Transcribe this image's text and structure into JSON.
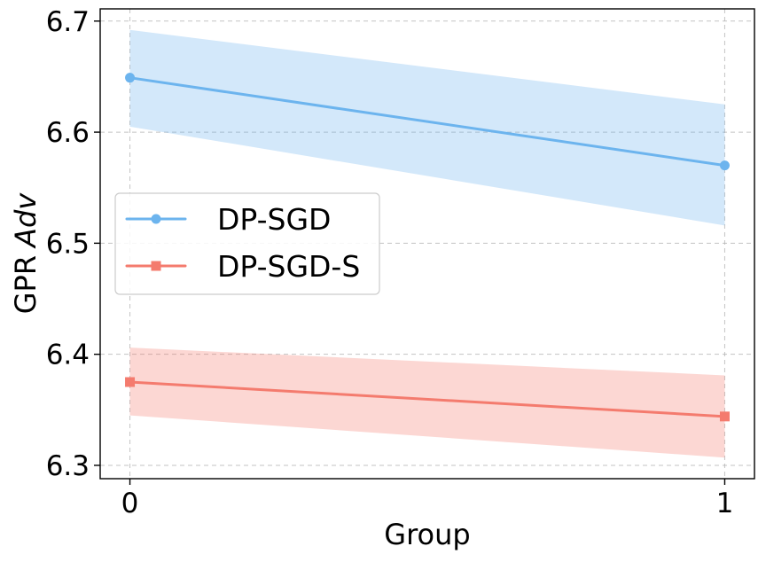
{
  "chart_data": {
    "type": "line",
    "title": "",
    "xlabel": "Group",
    "ylabel": "GPR",
    "ylabel_italic": "Adv",
    "x": [
      0,
      1
    ],
    "xticks": [
      0,
      1
    ],
    "yticks": [
      6.3,
      6.4,
      6.5,
      6.6,
      6.7
    ],
    "xlim": [
      -0.05,
      1.05
    ],
    "ylim": [
      6.288,
      6.711
    ],
    "grid": true,
    "legend_position": "center-left",
    "series": [
      {
        "name": "DP-SGD",
        "values": [
          6.649,
          6.57
        ],
        "lower": [
          6.605,
          6.516
        ],
        "upper": [
          6.692,
          6.625
        ],
        "color": "#6cb4ee",
        "marker": "circle"
      },
      {
        "name": "DP-SGD-S",
        "values": [
          6.375,
          6.344
        ],
        "lower": [
          6.345,
          6.307
        ],
        "upper": [
          6.406,
          6.381
        ],
        "color": "#f47b6e",
        "marker": "square"
      }
    ]
  }
}
